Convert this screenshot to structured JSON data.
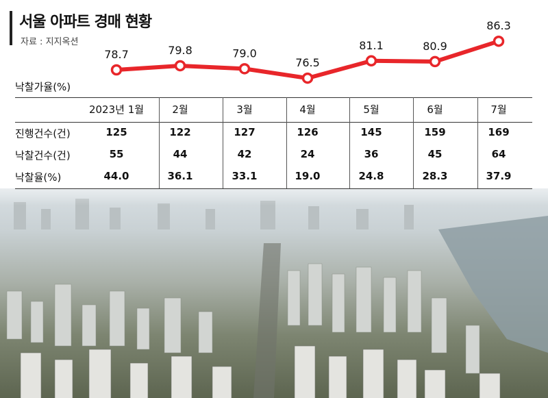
{
  "header": {
    "title": "서울 아파트 경매 현황",
    "source": "자료 : 지지옥션"
  },
  "chart_data": {
    "type": "line",
    "categories": [
      "2023년 1월",
      "2월",
      "3월",
      "4월",
      "5월",
      "6월",
      "7월"
    ],
    "series": [
      {
        "name": "낙찰가율(%)",
        "values": [
          78.7,
          79.8,
          79.0,
          76.5,
          81.1,
          80.9,
          86.3
        ]
      }
    ],
    "ylabel": "낙찰가율(%)",
    "line_color": "#e8262a"
  },
  "table": {
    "rows": [
      {
        "label": "진행건수(건)",
        "values": [
          "125",
          "122",
          "127",
          "126",
          "145",
          "159",
          "169"
        ]
      },
      {
        "label": "낙찰건수(건)",
        "values": [
          "55",
          "44",
          "42",
          "24",
          "36",
          "45",
          "64"
        ]
      },
      {
        "label": "낙찰율(%)",
        "values": [
          "44.0",
          "36.1",
          "33.1",
          "19.0",
          "24.8",
          "28.3",
          "37.9"
        ]
      }
    ]
  }
}
